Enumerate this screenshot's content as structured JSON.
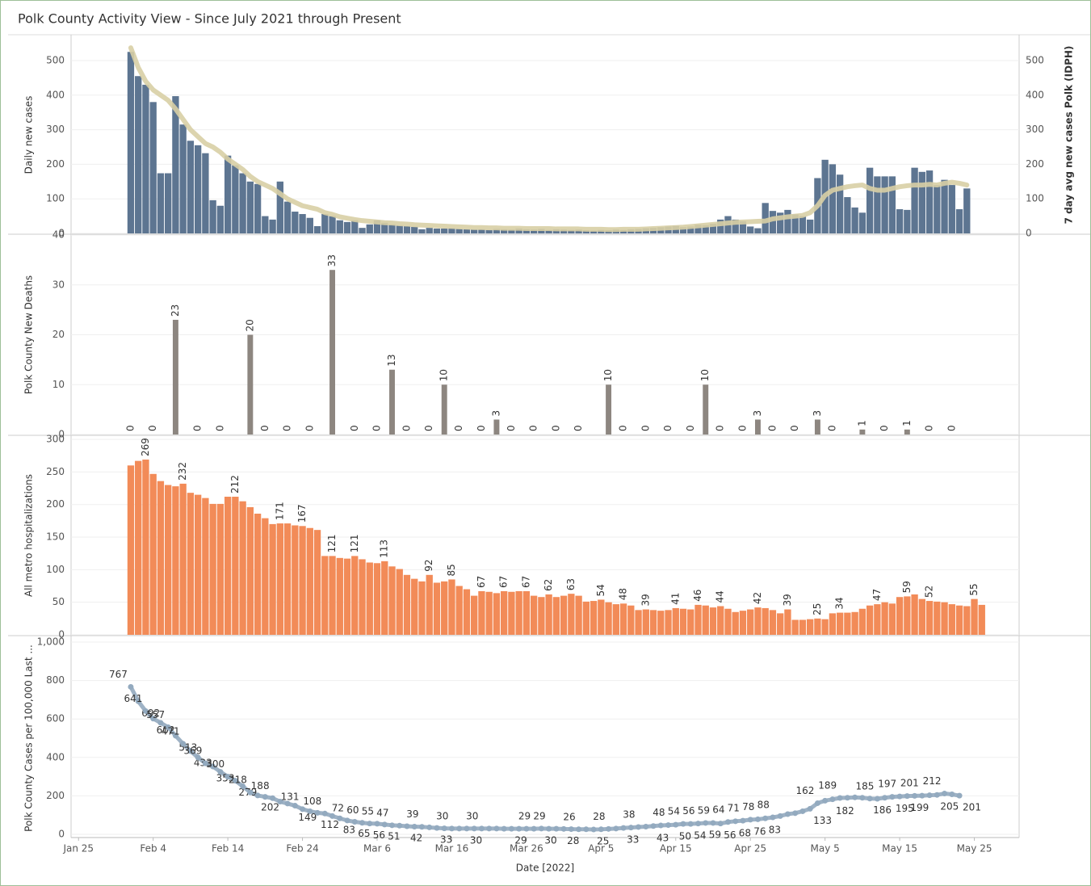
{
  "title": "Polk County Activity View - Since July 2021 through Present",
  "chart_data": [
    {
      "type": "bar",
      "ylabel": "Daily new cases",
      "y2label": "7 day avg new cases Polk (IDPH)",
      "x": [
        "Feb 1",
        "Feb 2",
        "Feb 3",
        "Feb 4",
        "Feb 5",
        "Feb 6",
        "Feb 7",
        "Feb 8",
        "Feb 9",
        "Feb 10",
        "Feb 11",
        "Feb 12",
        "Feb 13",
        "Feb 14",
        "Feb 15",
        "Feb 16",
        "Feb 17",
        "Feb 18",
        "Feb 19",
        "Feb 20",
        "Feb 21",
        "Feb 22",
        "Feb 23",
        "Feb 24",
        "Feb 25",
        "Feb 26",
        "Feb 27",
        "Feb 28",
        "Mar 1",
        "Mar 2",
        "Mar 3",
        "Mar 4",
        "Mar 5",
        "Mar 6",
        "Mar 7",
        "Mar 8",
        "Mar 9",
        "Mar 10",
        "Mar 11",
        "Mar 12",
        "Mar 13",
        "Mar 14",
        "Mar 15",
        "Mar 16",
        "Mar 17",
        "Mar 18",
        "Mar 19",
        "Mar 20",
        "Mar 21",
        "Mar 22",
        "Mar 23",
        "Mar 24",
        "Mar 25",
        "Mar 26",
        "Mar 27",
        "Mar 28",
        "Mar 29",
        "Mar 30",
        "Mar 31",
        "Apr 1",
        "Apr 2",
        "Apr 3",
        "Apr 4",
        "Apr 5",
        "Apr 6",
        "Apr 7",
        "Apr 8",
        "Apr 9",
        "Apr 10",
        "Apr 11",
        "Apr 12",
        "Apr 13",
        "Apr 14",
        "Apr 15",
        "Apr 16",
        "Apr 17",
        "Apr 18",
        "Apr 19",
        "Apr 20",
        "Apr 21",
        "Apr 22",
        "Apr 23",
        "Apr 24",
        "Apr 25",
        "Apr 26",
        "Apr 27",
        "Apr 28",
        "Apr 29",
        "Apr 30",
        "May 1",
        "May 2",
        "May 3",
        "May 4",
        "May 5",
        "May 6",
        "May 7",
        "May 8",
        "May 9",
        "May 10",
        "May 11",
        "May 12",
        "May 13",
        "May 14",
        "May 15",
        "May 16",
        "May 17",
        "May 18",
        "May 19",
        "May 20",
        "May 21",
        "May 22",
        "May 23",
        "May 24"
      ],
      "series": [
        {
          "type": "bar",
          "color": "#5d7591",
          "values": [
            525,
            455,
            430,
            380,
            174,
            174,
            397,
            315,
            268,
            255,
            232,
            96,
            80,
            225,
            197,
            174,
            150,
            143,
            50,
            40,
            150,
            92,
            63,
            56,
            45,
            21,
            56,
            50,
            38,
            33,
            38,
            16,
            26,
            38,
            31,
            26,
            23,
            21,
            19,
            12,
            16,
            14,
            14,
            15,
            13,
            12,
            11,
            12,
            10,
            13,
            12,
            11,
            14,
            12,
            11,
            13,
            10,
            12,
            11,
            10,
            11,
            9,
            8,
            10,
            9,
            11,
            10,
            12,
            13,
            15,
            16,
            18,
            20,
            22,
            18,
            20,
            25,
            24,
            28,
            40,
            50,
            40,
            35,
            20,
            15,
            88,
            65,
            60,
            68,
            55,
            50,
            40,
            160,
            213,
            200,
            170,
            105,
            75,
            60,
            190,
            165,
            165,
            165,
            70,
            68,
            190,
            178,
            182,
            140,
            155,
            140,
            70,
            130
          ]
        },
        {
          "type": "line",
          "axis": "y2",
          "color": "#d8cfa5",
          "values": [
            537,
            480,
            440,
            415,
            400,
            385,
            360,
            330,
            300,
            280,
            260,
            250,
            235,
            215,
            200,
            185,
            165,
            150,
            140,
            130,
            115,
            100,
            90,
            80,
            75,
            70,
            60,
            55,
            48,
            44,
            40,
            37,
            35,
            33,
            31,
            30,
            28,
            27,
            25,
            24,
            23,
            22,
            21,
            20,
            19,
            18,
            17,
            17,
            16,
            16,
            15,
            15,
            15,
            14,
            14,
            14,
            14,
            13,
            13,
            13,
            13,
            12,
            12,
            12,
            11,
            11,
            12,
            12,
            12,
            13,
            14,
            15,
            16,
            17,
            18,
            20,
            22,
            24,
            26,
            28,
            30,
            32,
            33,
            34,
            35,
            36,
            42,
            45,
            48,
            50,
            52,
            60,
            80,
            110,
            125,
            130,
            135,
            138,
            140,
            130,
            125,
            125,
            130,
            135,
            138,
            140,
            140,
            142,
            140,
            145,
            148,
            145,
            140
          ]
        }
      ],
      "ylim": [
        0,
        570
      ],
      "yticks": [
        0,
        100,
        200,
        300,
        400,
        500
      ],
      "y2lim": [
        0,
        570
      ],
      "y2ticks": [
        0,
        100,
        200,
        300,
        400,
        500
      ],
      "grid": true
    },
    {
      "type": "bar",
      "ylabel": "Polk County New Deaths",
      "color": "#8d8680",
      "data_labels": true,
      "x": [
        "Feb 1",
        "Feb 4",
        "Feb 7",
        "Feb 10",
        "Feb 13",
        "Feb 17",
        "Feb 19",
        "Feb 22",
        "Feb 25",
        "Feb 28",
        "Mar 3",
        "Mar 6",
        "Mar 8",
        "Mar 10",
        "Mar 13",
        "Mar 15",
        "Mar 17",
        "Mar 20",
        "Mar 22",
        "Mar 24",
        "Mar 27",
        "Mar 30",
        "Apr 2",
        "Apr 6",
        "Apr 8",
        "Apr 11",
        "Apr 14",
        "Apr 17",
        "Apr 19",
        "Apr 21",
        "Apr 24",
        "Apr 26",
        "Apr 28",
        "May 1",
        "May 4",
        "May 6",
        "May 10",
        "May 13",
        "May 16",
        "May 19",
        "May 22"
      ],
      "values": [
        0,
        0,
        23,
        0,
        0,
        20,
        0,
        0,
        0,
        33,
        0,
        0,
        13,
        0,
        0,
        10,
        0,
        0,
        3,
        0,
        0,
        0,
        0,
        10,
        0,
        0,
        0,
        0,
        10,
        0,
        0,
        3,
        0,
        0,
        3,
        0,
        1,
        0,
        1,
        0,
        0
      ],
      "ylim": [
        0,
        40
      ],
      "yticks": [
        0,
        10,
        20,
        30,
        40
      ],
      "grid": true
    },
    {
      "type": "bar",
      "ylabel": "All metro hospitalizations",
      "color": "#f28b58",
      "x": [
        "Feb 1",
        "Feb 2",
        "Feb 3",
        "Feb 4",
        "Feb 5",
        "Feb 6",
        "Feb 7",
        "Feb 8",
        "Feb 9",
        "Feb 10",
        "Feb 11",
        "Feb 12",
        "Feb 13",
        "Feb 14",
        "Feb 15",
        "Feb 16",
        "Feb 17",
        "Feb 18",
        "Feb 19",
        "Feb 20",
        "Feb 21",
        "Feb 22",
        "Feb 23",
        "Feb 24",
        "Feb 25",
        "Feb 26",
        "Feb 27",
        "Feb 28",
        "Mar 1",
        "Mar 2",
        "Mar 3",
        "Mar 4",
        "Mar 5",
        "Mar 6",
        "Mar 7",
        "Mar 8",
        "Mar 9",
        "Mar 10",
        "Mar 11",
        "Mar 12",
        "Mar 13",
        "Mar 14",
        "Mar 15",
        "Mar 16",
        "Mar 17",
        "Mar 18",
        "Mar 19",
        "Mar 20",
        "Mar 21",
        "Mar 22",
        "Mar 23",
        "Mar 24",
        "Mar 25",
        "Mar 26",
        "Mar 27",
        "Mar 28",
        "Mar 29",
        "Mar 30",
        "Mar 31",
        "Apr 1",
        "Apr 2",
        "Apr 3",
        "Apr 4",
        "Apr 5",
        "Apr 6",
        "Apr 7",
        "Apr 8",
        "Apr 9",
        "Apr 10",
        "Apr 11",
        "Apr 12",
        "Apr 13",
        "Apr 14",
        "Apr 15",
        "Apr 16",
        "Apr 17",
        "Apr 18",
        "Apr 19",
        "Apr 20",
        "Apr 21",
        "Apr 22",
        "Apr 23",
        "Apr 24",
        "Apr 25",
        "Apr 26",
        "Apr 27",
        "Apr 28",
        "Apr 29",
        "Apr 30",
        "May 1",
        "May 2",
        "May 3",
        "May 4",
        "May 5",
        "May 6",
        "May 7",
        "May 8",
        "May 9",
        "May 10",
        "May 11",
        "May 12",
        "May 13",
        "May 14",
        "May 15",
        "May 16",
        "May 17",
        "May 18",
        "May 19",
        "May 20",
        "May 21",
        "May 22",
        "May 23",
        "May 24",
        "May 25",
        "May 26"
      ],
      "values": [
        260,
        267,
        269,
        247,
        236,
        230,
        228,
        232,
        218,
        215,
        210,
        201,
        201,
        212,
        212,
        205,
        196,
        186,
        179,
        170,
        171,
        171,
        168,
        167,
        164,
        161,
        121,
        121,
        118,
        117,
        121,
        116,
        111,
        110,
        113,
        105,
        101,
        92,
        86,
        82,
        92,
        80,
        82,
        85,
        75,
        70,
        60,
        67,
        66,
        64,
        67,
        66,
        67,
        67,
        60,
        58,
        62,
        58,
        60,
        63,
        60,
        51,
        52,
        54,
        50,
        47,
        48,
        45,
        38,
        39,
        38,
        37,
        38,
        41,
        40,
        39,
        46,
        45,
        42,
        44,
        40,
        35,
        37,
        39,
        42,
        41,
        38,
        33,
        39,
        23,
        23,
        24,
        25,
        24,
        33,
        34,
        34,
        35,
        40,
        45,
        47,
        50,
        48,
        58,
        59,
        62,
        55,
        52,
        51,
        50,
        47,
        45,
        44,
        55,
        46
      ],
      "value_labels": [
        null,
        null,
        "269",
        null,
        null,
        null,
        null,
        "232",
        null,
        null,
        null,
        null,
        null,
        null,
        "212",
        null,
        null,
        null,
        null,
        null,
        "171",
        null,
        null,
        "167",
        null,
        null,
        null,
        "121",
        null,
        null,
        "121",
        null,
        null,
        null,
        "113",
        null,
        null,
        null,
        null,
        null,
        "92",
        null,
        null,
        "85",
        null,
        null,
        null,
        "67",
        null,
        null,
        "67",
        null,
        null,
        "67",
        null,
        null,
        "62",
        null,
        null,
        "63",
        null,
        null,
        null,
        "54",
        null,
        null,
        "48",
        null,
        null,
        "39",
        null,
        null,
        null,
        "41",
        null,
        null,
        "46",
        null,
        null,
        "44",
        null,
        null,
        null,
        null,
        "42",
        null,
        null,
        null,
        "39",
        null,
        null,
        null,
        "25",
        null,
        null,
        "34",
        null,
        null,
        null,
        null,
        "47",
        null,
        null,
        null,
        "59",
        null,
        null,
        "52",
        null,
        null,
        null,
        null,
        null,
        "55",
        null
      ],
      "ylim": [
        0,
        305
      ],
      "yticks": [
        0,
        50,
        100,
        150,
        200,
        250,
        300
      ],
      "grid": true
    },
    {
      "type": "line",
      "ylabel": "Polk County Cases per 100,000 Last ...",
      "color": "#93aabf",
      "markers": true,
      "xlabel": "Date [2022]",
      "x": [
        "Feb 1",
        "Feb 2",
        "Feb 3",
        "Feb 4",
        "Feb 5",
        "Feb 6",
        "Feb 7",
        "Feb 8",
        "Feb 9",
        "Feb 10",
        "Feb 11",
        "Feb 12",
        "Feb 13",
        "Feb 14",
        "Feb 15",
        "Feb 16",
        "Feb 17",
        "Feb 18",
        "Feb 19",
        "Feb 20",
        "Feb 21",
        "Feb 22",
        "Feb 23",
        "Feb 24",
        "Feb 25",
        "Feb 26",
        "Feb 27",
        "Feb 28",
        "Mar 1",
        "Mar 2",
        "Mar 3",
        "Mar 4",
        "Mar 5",
        "Mar 6",
        "Mar 7",
        "Mar 8",
        "Mar 9",
        "Mar 10",
        "Mar 11",
        "Mar 12",
        "Mar 13",
        "Mar 14",
        "Mar 15",
        "Mar 16",
        "Mar 17",
        "Mar 18",
        "Mar 19",
        "Mar 20",
        "Mar 21",
        "Mar 22",
        "Mar 23",
        "Mar 24",
        "Mar 25",
        "Mar 26",
        "Mar 27",
        "Mar 28",
        "Mar 29",
        "Mar 30",
        "Mar 31",
        "Apr 1",
        "Apr 2",
        "Apr 3",
        "Apr 4",
        "Apr 5",
        "Apr 6",
        "Apr 7",
        "Apr 8",
        "Apr 9",
        "Apr 10",
        "Apr 11",
        "Apr 12",
        "Apr 13",
        "Apr 14",
        "Apr 15",
        "Apr 16",
        "Apr 17",
        "Apr 18",
        "Apr 19",
        "Apr 20",
        "Apr 21",
        "Apr 22",
        "Apr 23",
        "Apr 24",
        "Apr 25",
        "Apr 26",
        "Apr 27",
        "Apr 28",
        "Apr 29",
        "Apr 30",
        "May 1",
        "May 2",
        "May 3",
        "May 4",
        "May 5",
        "May 6",
        "May 7",
        "May 8",
        "May 9",
        "May 10",
        "May 11",
        "May 12",
        "May 13",
        "May 14",
        "May 15",
        "May 16",
        "May 17",
        "May 18",
        "May 19",
        "May 20",
        "May 21",
        "May 22",
        "May 23"
      ],
      "values": [
        767,
        692,
        641,
        602,
        580,
        557,
        513,
        471,
        433,
        400,
        369,
        353,
        325,
        300,
        279,
        250,
        218,
        202,
        195,
        188,
        170,
        160,
        149,
        131,
        120,
        112,
        108,
        95,
        83,
        72,
        65,
        60,
        56,
        55,
        51,
        47,
        45,
        42,
        40,
        39,
        36,
        33,
        31,
        30,
        30,
        30,
        30,
        30,
        30,
        30,
        29,
        29,
        29,
        29,
        29,
        30,
        29,
        29,
        28,
        27,
        26,
        26,
        25,
        26,
        28,
        30,
        33,
        35,
        38,
        40,
        43,
        46,
        48,
        50,
        54,
        54,
        56,
        59,
        59,
        56,
        64,
        68,
        71,
        76,
        78,
        83,
        88,
        95,
        105,
        110,
        120,
        133,
        162,
        175,
        182,
        189,
        190,
        192,
        190,
        186,
        185,
        190,
        195,
        197,
        199,
        200,
        201,
        203,
        205,
        212,
        208,
        201
      ],
      "value_labels": [
        "767",
        "692",
        "641",
        "602",
        null,
        "557",
        "513",
        "471",
        "433",
        null,
        "369",
        "353",
        null,
        "300",
        "279",
        null,
        "218",
        "202",
        null,
        "188",
        null,
        null,
        "149",
        "131",
        null,
        "112",
        "108",
        null,
        "83",
        "72",
        "65",
        "60",
        "56",
        "55",
        "51",
        "47",
        null,
        "42",
        null,
        "39",
        null,
        "33",
        null,
        "30",
        null,
        "30",
        null,
        "30",
        null,
        null,
        null,
        "29",
        null,
        null,
        "29",
        "30",
        "29",
        null,
        "28",
        null,
        "26",
        null,
        "25",
        null,
        "28",
        null,
        "33",
        null,
        "38",
        null,
        "43",
        null,
        "48",
        "50",
        "54",
        "54",
        "56",
        "59",
        "59",
        "56",
        "64",
        "68",
        "71",
        "76",
        "78",
        "83",
        "88",
        null,
        null,
        null,
        null,
        "133",
        "162",
        null,
        "182",
        "189",
        null,
        null,
        null,
        "186",
        "185",
        null,
        "195",
        "197",
        "199",
        null,
        "201",
        null,
        "205",
        "212",
        null,
        "201"
      ],
      "ylim": [
        0,
        1000
      ],
      "yticks": [
        0,
        200,
        400,
        600,
        800,
        {
          "value": 1000,
          "label": "1,000"
        }
      ],
      "grid": true,
      "xlim": [
        "Jan 24",
        "May 31"
      ],
      "xticks": [
        "Jan 25",
        "Feb 4",
        "Feb 14",
        "Feb 24",
        "Mar 6",
        "Mar 16",
        "Mar 26",
        "Apr 5",
        "Apr 15",
        "Apr 25",
        "May 5",
        "May 15",
        "May 25"
      ]
    }
  ]
}
